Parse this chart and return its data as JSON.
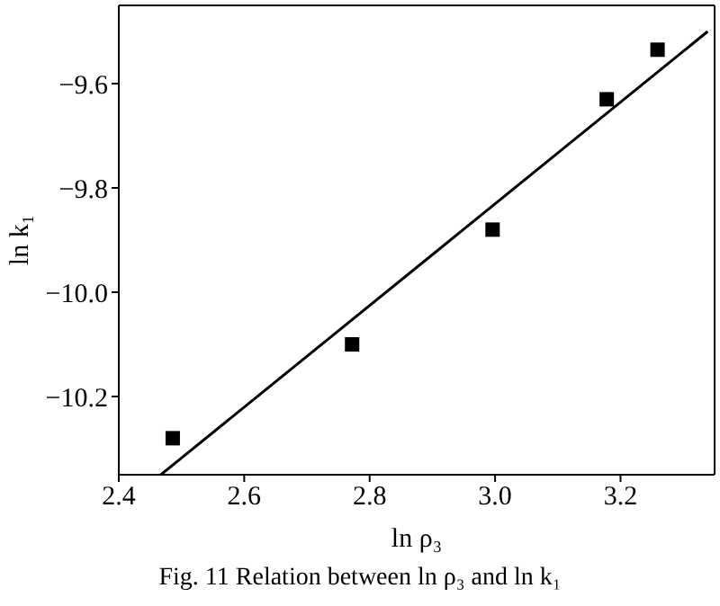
{
  "chart_data": {
    "type": "scatter",
    "title": "Fig. 11    Relation between ln ρ₃  and  ln k₁",
    "xlabel": "ln ρ₃",
    "ylabel": "ln k₁",
    "xlim": [
      2.4,
      3.35
    ],
    "xticks": [
      {
        "value": 2.4,
        "label": "2.4"
      },
      {
        "value": 2.6,
        "label": "2.6"
      },
      {
        "value": 2.8,
        "label": "2.8"
      },
      {
        "value": 3.0,
        "label": "3.0"
      },
      {
        "value": 3.2,
        "label": "3.2"
      }
    ],
    "ylim": [
      -10.35,
      -9.45
    ],
    "yticks": [
      {
        "value": -10.2,
        "label": "−10.2"
      },
      {
        "value": -10.0,
        "label": "−10.0"
      },
      {
        "value": -9.8,
        "label": "−9.8"
      },
      {
        "value": -9.6,
        "label": "−9.6"
      }
    ],
    "legend": false,
    "marker": "square",
    "series": [
      {
        "color": "#000000",
        "x": [
          2.486,
          2.772,
          2.996,
          3.178,
          3.259
        ],
        "values": [
          -10.28,
          -10.1,
          -9.88,
          -9.63,
          -9.535
        ]
      },
      {
        "type": "line",
        "color": "#000000",
        "marker": "none",
        "line_style": "solid",
        "x": [
          2.467,
          3.339
        ],
        "values": [
          -10.35,
          -9.5
        ]
      }
    ]
  }
}
